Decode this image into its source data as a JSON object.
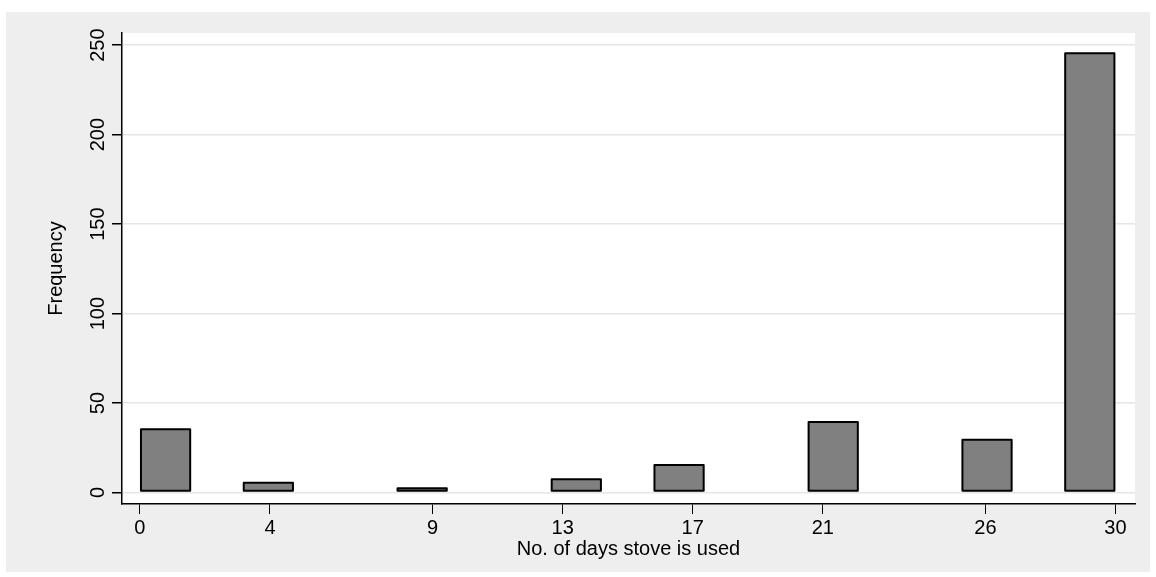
{
  "chart_data": {
    "type": "histogram",
    "xlabel": "No. of days stove is used",
    "ylabel": "Frequency",
    "bins": [
      0,
      1.58,
      3.16,
      4.74,
      6.32,
      7.89,
      9.47,
      11.05,
      12.63,
      14.21,
      15.79,
      17.37,
      18.95,
      20.53,
      22.11,
      23.68,
      25.26,
      26.84,
      28.42,
      30
    ],
    "values": [
      36,
      0,
      6,
      0,
      0,
      3,
      0,
      0,
      8,
      0,
      16,
      0,
      0,
      40,
      0,
      0,
      30,
      0,
      246
    ],
    "color": "#808080",
    "xlim": [
      -0.55,
      30.6
    ],
    "xticks": [
      0,
      4,
      9,
      13,
      17,
      21,
      26,
      30
    ],
    "ylim": [
      -6.4,
      256.8
    ],
    "yticks": [
      0,
      50,
      100,
      150,
      200,
      250
    ],
    "grid": "y",
    "legend": false
  }
}
